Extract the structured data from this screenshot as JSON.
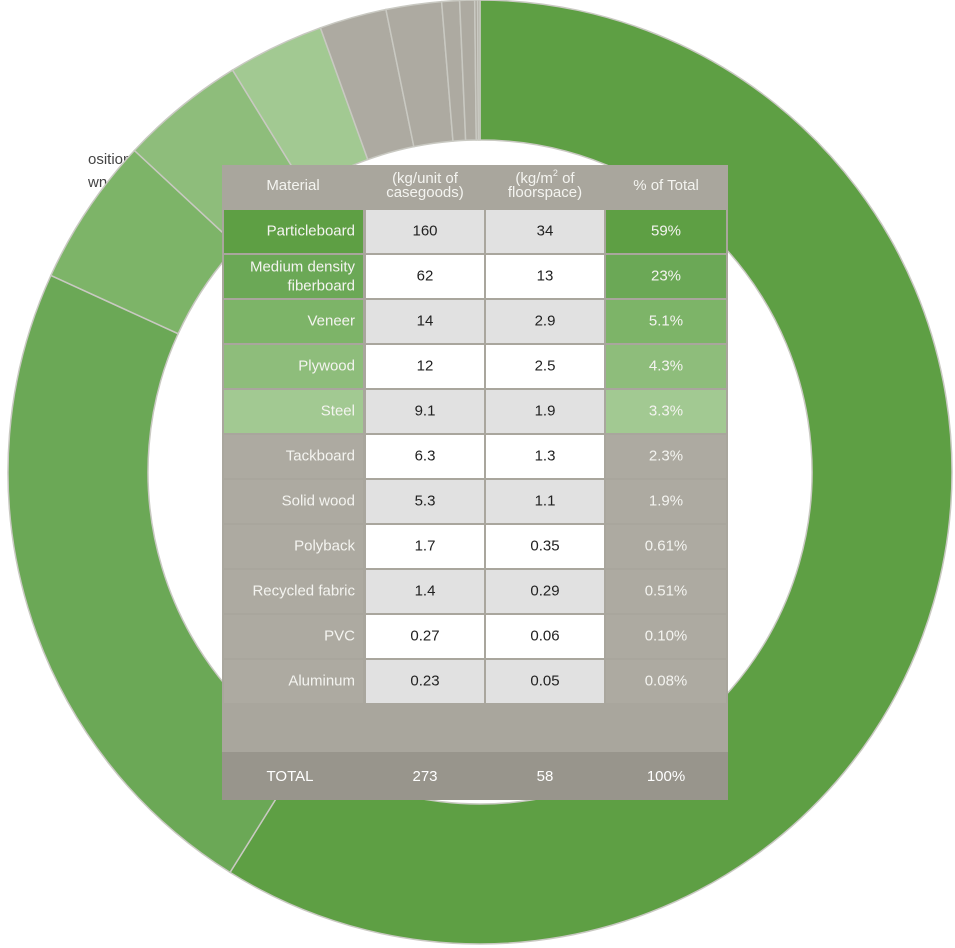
{
  "caption": [
    "osition of",
    "wn on"
  ],
  "chart_data": {
    "type": "pie",
    "donut": true,
    "categories": [
      "Particleboard",
      "Medium density fiberboard",
      "Veneer",
      "Plywood",
      "Steel",
      "Tackboard",
      "Solid wood",
      "Polyback",
      "Recycled fabric",
      "PVC",
      "Aluminum"
    ],
    "values": [
      59,
      23,
      5.1,
      4.3,
      3.3,
      2.3,
      1.9,
      0.61,
      0.51,
      0.1,
      0.08
    ],
    "value_labels": [
      "59%",
      "23%",
      "5.1%",
      "4.3%",
      "3.3%",
      "2.3%",
      "1.9%",
      "0.61%",
      "0.51%",
      "0.10%",
      "0.08%"
    ],
    "colors": [
      "#5e9f44",
      "#6ba856",
      "#7db468",
      "#8ebd7b",
      "#a2c992",
      "#adaaa1",
      "#adaaa1",
      "#adaaa1",
      "#adaaa1",
      "#adaaa1",
      "#adaaa1"
    ]
  },
  "table": {
    "header": {
      "material": "Material",
      "per_unit": [
        "(kg/unit of",
        "casegoods)"
      ],
      "per_area": {
        "pre": "(kg/m",
        "sup": "2",
        "post": " of",
        "line2": "floorspace)"
      },
      "percent": "% of Total"
    },
    "per_unit": [
      "160",
      "62",
      "14",
      "12",
      "9.1",
      "6.3",
      "5.3",
      "1.7",
      "1.4",
      "0.27",
      "0.23"
    ],
    "per_area": [
      "34",
      "13",
      "2.9",
      "2.5",
      "1.9",
      "1.3",
      "1.1",
      "0.35",
      "0.29",
      "0.06",
      "0.05"
    ],
    "total": [
      "TOTAL",
      "273",
      "58",
      "100%"
    ]
  }
}
